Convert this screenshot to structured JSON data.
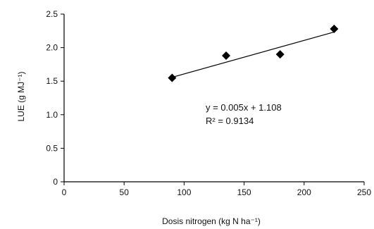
{
  "chart_data": {
    "type": "scatter",
    "title": "",
    "xlabel": "Dosis nitrogen (kg N ha⁻¹)",
    "ylabel": "LUE (g MJ⁻¹)",
    "xlim": [
      0,
      250
    ],
    "ylim": [
      0,
      2.5
    ],
    "x_ticks": [
      0,
      50,
      100,
      150,
      200,
      250
    ],
    "y_ticks": [
      0,
      0.5,
      1.0,
      1.5,
      2.0,
      2.5
    ],
    "x_tick_labels": [
      "0",
      "50",
      "100",
      "150",
      "200",
      "250"
    ],
    "y_tick_labels": [
      "0",
      "0.5",
      "1.0",
      "1.5",
      "2.0",
      "2.5"
    ],
    "grid": false,
    "legend": "none",
    "series": [
      {
        "x": [
          90,
          135,
          180,
          225
        ],
        "y": [
          1.55,
          1.88,
          1.9,
          2.28
        ],
        "marker": "diamond",
        "color": "#000000"
      }
    ],
    "trendline": {
      "slope": 0.005,
      "intercept": 1.108,
      "x_range": [
        90,
        225
      ]
    },
    "annotations": {
      "equation": "y = 0.005x + 1.108",
      "r_squared": "R² = 0.9134"
    }
  }
}
